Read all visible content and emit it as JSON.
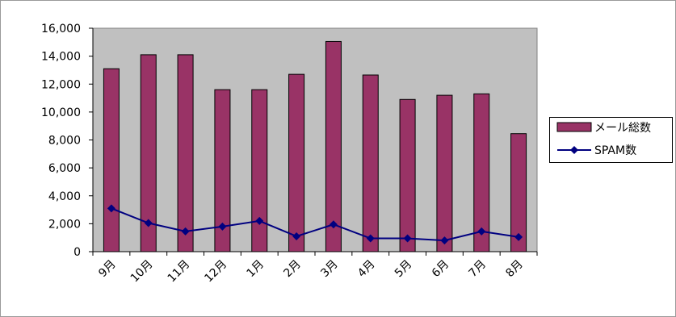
{
  "chart_data": {
    "type": "bar",
    "categories": [
      "9月",
      "10月",
      "11月",
      "12月",
      "1月",
      "2月",
      "3月",
      "4月",
      "5月",
      "6月",
      "7月",
      "8月"
    ],
    "series": [
      {
        "name": "メール総数",
        "type": "bar",
        "color": "#993366",
        "values": [
          13100,
          14100,
          14100,
          11600,
          11600,
          12700,
          15050,
          12650,
          10900,
          11200,
          11300,
          8450
        ]
      },
      {
        "name": "SPAM数",
        "type": "line",
        "color": "#000080",
        "marker": "diamond",
        "values": [
          3100,
          2050,
          1450,
          1800,
          2200,
          1100,
          1950,
          950,
          950,
          800,
          1450,
          1050
        ]
      }
    ],
    "ylim": [
      0,
      16000
    ],
    "yticks": [
      0,
      2000,
      4000,
      6000,
      8000,
      10000,
      12000,
      14000,
      16000
    ],
    "ytick_labels": [
      "0",
      "2,000",
      "4,000",
      "6,000",
      "8,000",
      "10,000",
      "12,000",
      "14,000",
      "16,000"
    ],
    "plot_background": "#c0c0c0",
    "grid": false,
    "legend_position": "right"
  }
}
